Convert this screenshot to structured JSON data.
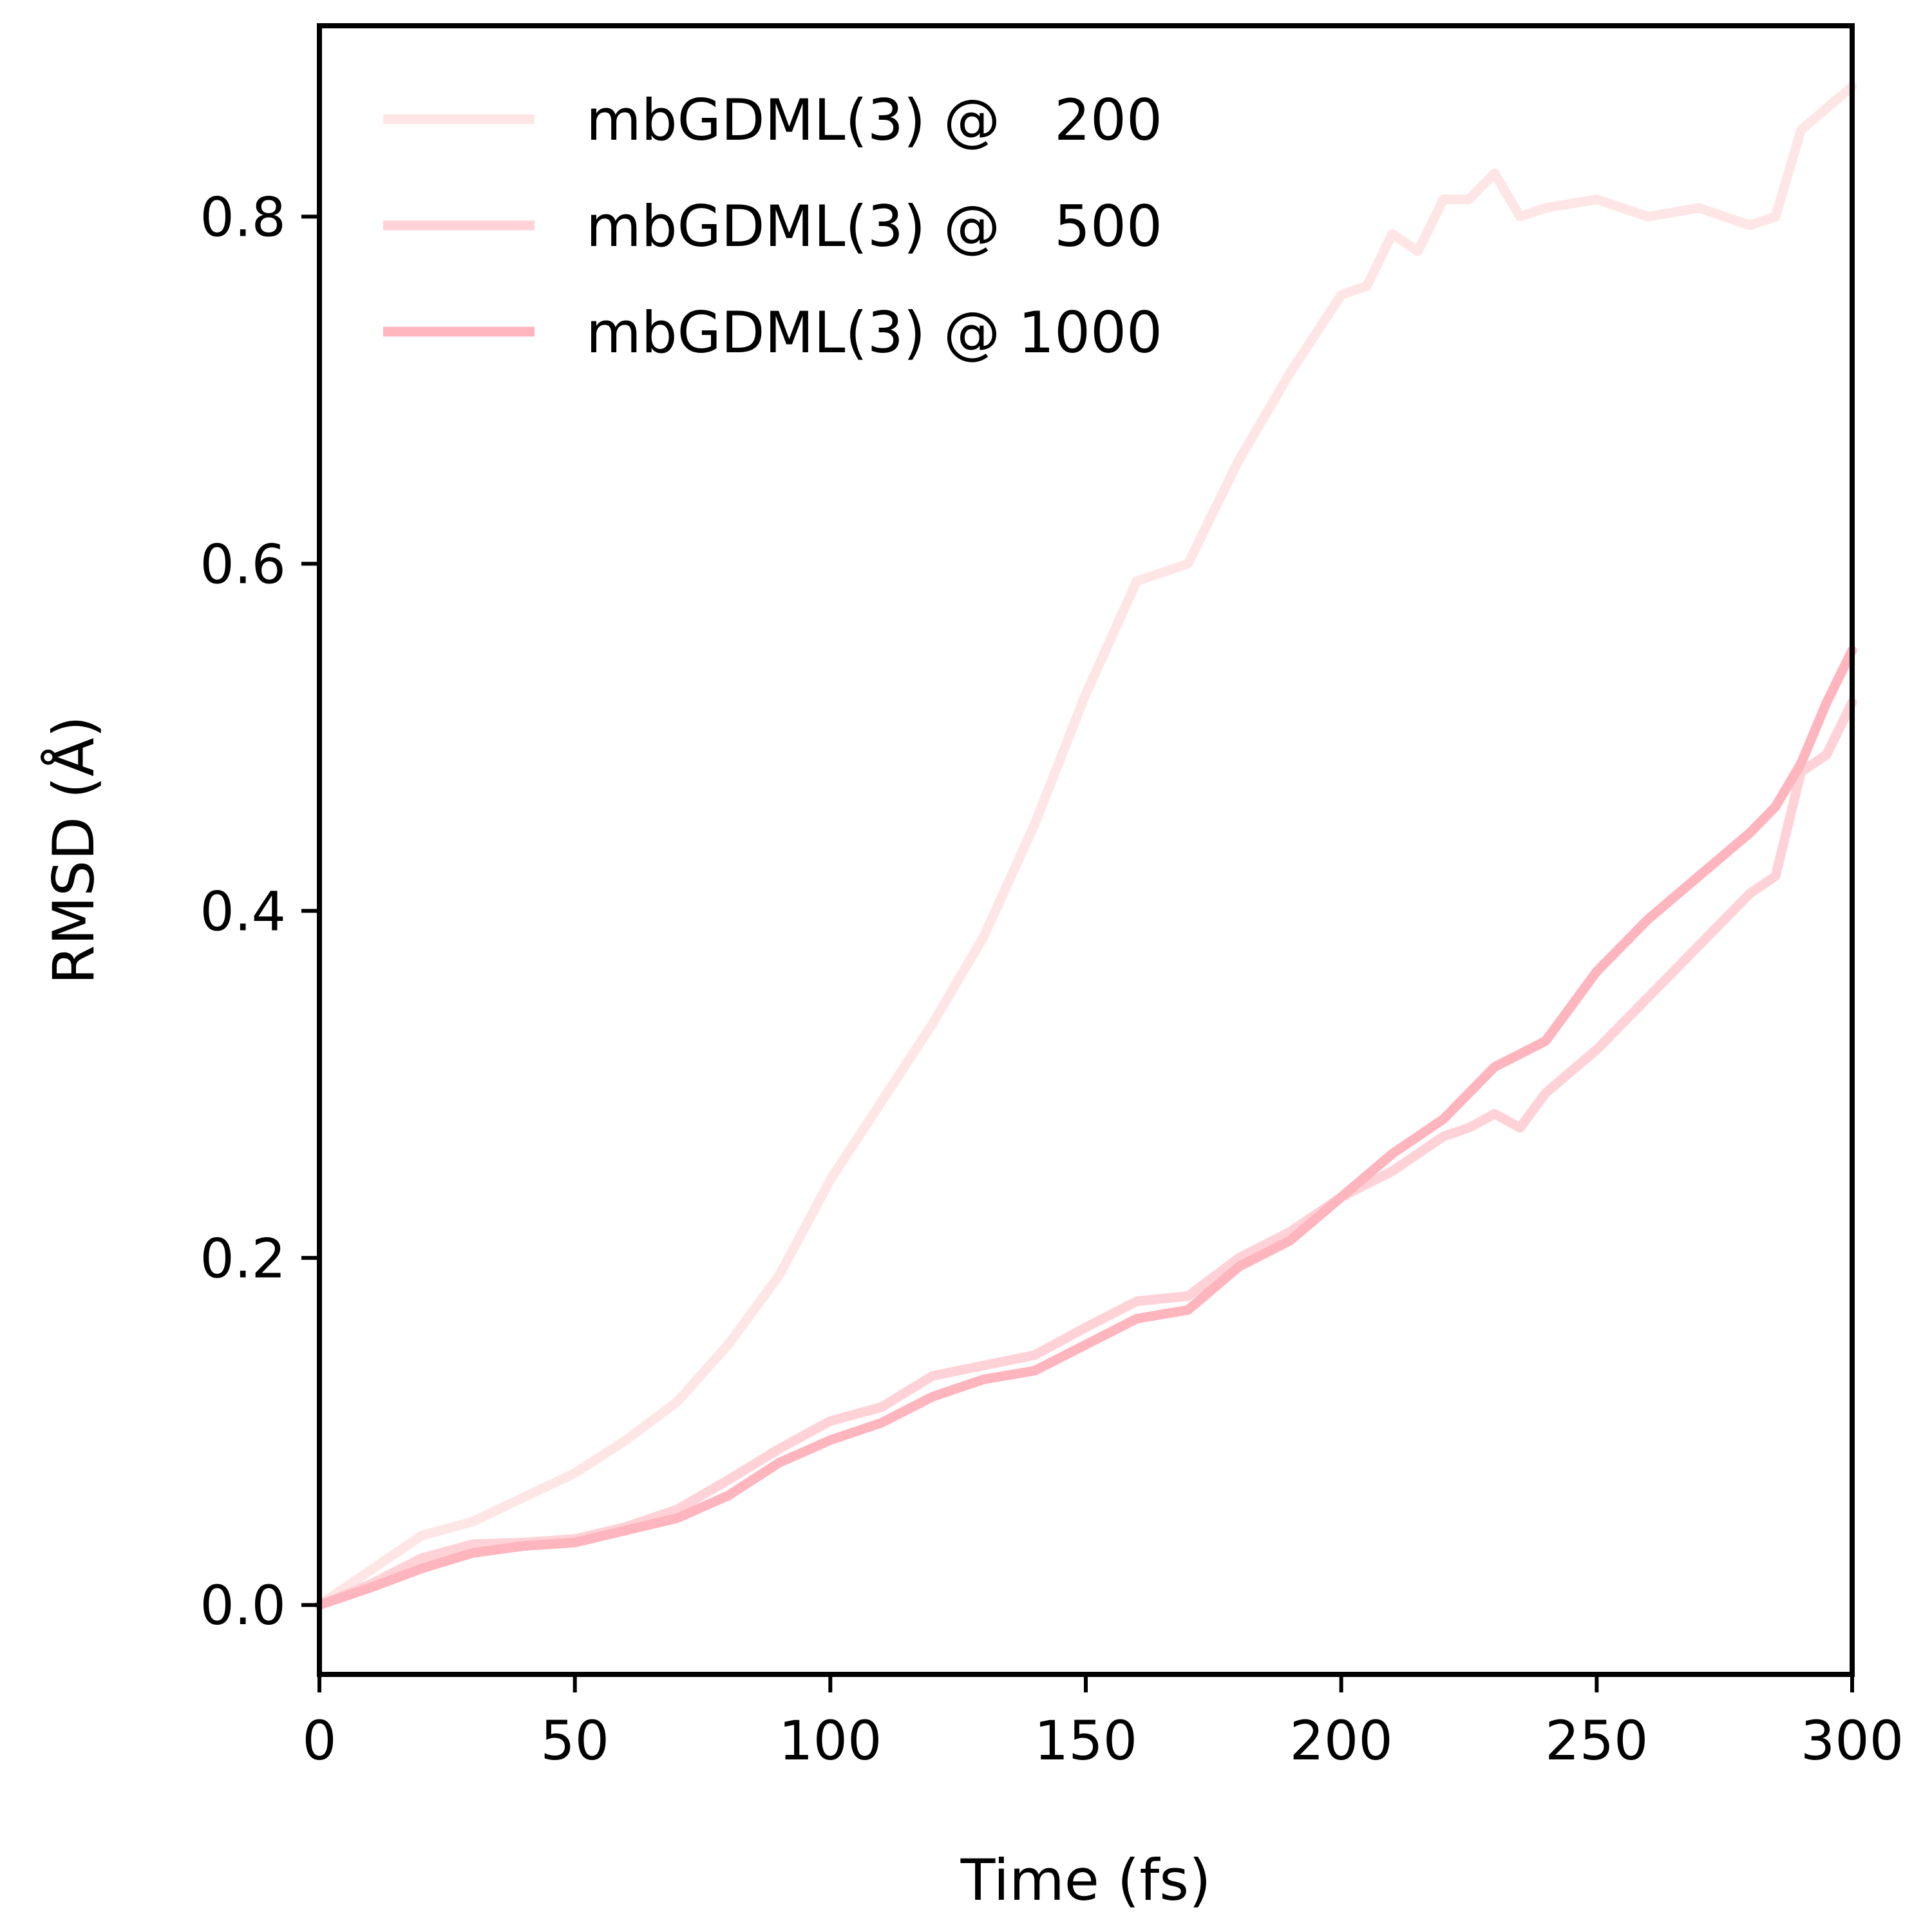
{
  "chart_data": {
    "type": "line",
    "xlabel": "Time (fs)",
    "ylabel": "RMSD (Å)",
    "xlim": [
      0,
      300
    ],
    "ylim": [
      -0.04,
      0.91
    ],
    "xticks": [
      0,
      50,
      100,
      150,
      200,
      250,
      300
    ],
    "xtick_labels": [
      "0",
      "50",
      "100",
      "150",
      "200",
      "250",
      "300"
    ],
    "yticks": [
      0.0,
      0.2,
      0.4,
      0.6,
      0.8
    ],
    "ytick_labels": [
      "0.0",
      "0.2",
      "0.4",
      "0.6",
      "0.8"
    ],
    "grid": false,
    "legend_position": "top-left",
    "series": [
      {
        "name": "mbGDML(3) @   200",
        "color": "#ffe6e6",
        "x": [
          0,
          10,
          20,
          30,
          40,
          50,
          60,
          70,
          80,
          90,
          100,
          110,
          120,
          130,
          140,
          150,
          160,
          170,
          180,
          190,
          200,
          205,
          210,
          215,
          220,
          225,
          230,
          235,
          240,
          250,
          260,
          270,
          280,
          285,
          290,
          300
        ],
        "y": [
          0.0,
          0.02,
          0.04,
          0.048,
          0.062,
          0.076,
          0.095,
          0.117,
          0.15,
          0.19,
          0.245,
          0.29,
          0.335,
          0.385,
          0.45,
          0.525,
          0.59,
          0.6,
          0.66,
          0.71,
          0.755,
          0.76,
          0.79,
          0.78,
          0.81,
          0.81,
          0.825,
          0.8,
          0.805,
          0.81,
          0.8,
          0.805,
          0.795,
          0.8,
          0.85,
          0.875
        ]
      },
      {
        "name": "mbGDML(3) @   500",
        "color": "#ffd2d7",
        "x": [
          0,
          10,
          20,
          30,
          40,
          50,
          60,
          70,
          80,
          90,
          100,
          110,
          120,
          130,
          140,
          150,
          160,
          170,
          180,
          190,
          200,
          210,
          220,
          225,
          230,
          235,
          240,
          250,
          260,
          270,
          280,
          285,
          290,
          295,
          300
        ],
        "y": [
          0.0,
          0.012,
          0.027,
          0.035,
          0.036,
          0.038,
          0.045,
          0.055,
          0.072,
          0.09,
          0.106,
          0.114,
          0.132,
          0.138,
          0.144,
          0.16,
          0.175,
          0.178,
          0.2,
          0.215,
          0.235,
          0.25,
          0.27,
          0.275,
          0.283,
          0.275,
          0.295,
          0.32,
          0.35,
          0.38,
          0.41,
          0.42,
          0.48,
          0.49,
          0.52
        ]
      },
      {
        "name": "mbGDML(3) @ 1000",
        "color": "#ffb5be",
        "x": [
          0,
          10,
          20,
          30,
          40,
          50,
          60,
          70,
          80,
          90,
          100,
          110,
          120,
          130,
          140,
          150,
          160,
          170,
          180,
          190,
          200,
          210,
          220,
          230,
          240,
          250,
          260,
          270,
          280,
          285,
          290,
          295,
          300
        ],
        "y": [
          0.0,
          0.01,
          0.021,
          0.03,
          0.034,
          0.036,
          0.043,
          0.05,
          0.063,
          0.082,
          0.095,
          0.105,
          0.12,
          0.13,
          0.135,
          0.15,
          0.165,
          0.17,
          0.195,
          0.21,
          0.235,
          0.26,
          0.28,
          0.31,
          0.325,
          0.365,
          0.395,
          0.42,
          0.445,
          0.46,
          0.485,
          0.52,
          0.55
        ]
      }
    ]
  }
}
